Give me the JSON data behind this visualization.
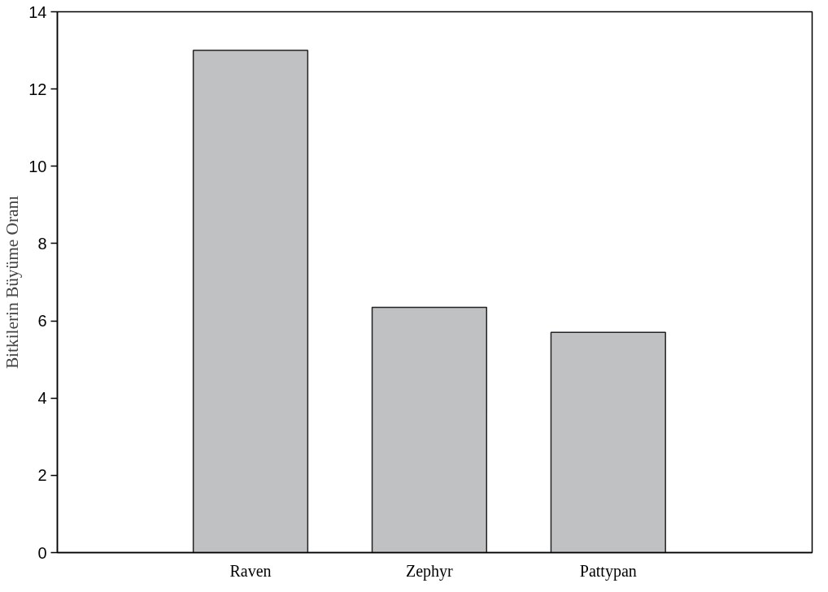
{
  "chart_data": {
    "type": "bar",
    "ylabel": "Bitkilerin Büyüme Oranı",
    "categories": [
      "Raven",
      "Zephyr",
      "Pattypan"
    ],
    "values": [
      13.0,
      6.35,
      5.7
    ],
    "color": "#c0c1c3",
    "ylim": [
      0,
      14
    ],
    "yticks": [
      0,
      2,
      4,
      6,
      8,
      10,
      12,
      14
    ],
    "grid": false
  }
}
